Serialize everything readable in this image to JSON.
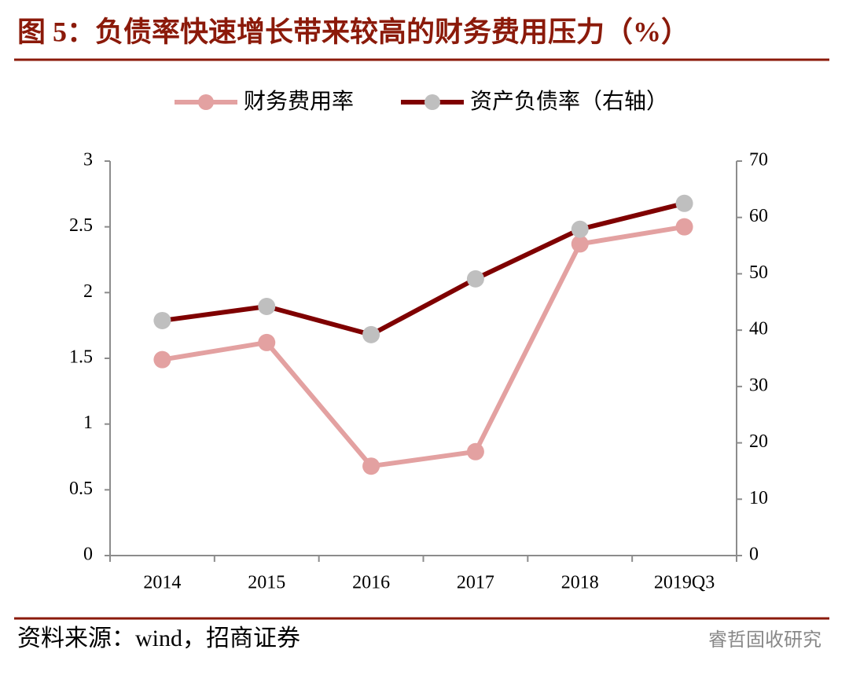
{
  "chart_data": {
    "type": "line",
    "title": "图 5：负债率快速增长带来较高的财务费用压力（%）",
    "categories": [
      "2014",
      "2015",
      "2016",
      "2017",
      "2018",
      "2019Q3"
    ],
    "series": [
      {
        "name": "财务费用率",
        "color": "#e3a1a1",
        "marker_color": "#e3a1a1",
        "values": [
          1.49,
          1.62,
          0.68,
          0.79,
          2.37,
          2.5
        ]
      },
      {
        "name": "资产负债率（右轴）",
        "color": "#7f0000",
        "marker_color": "#bfbfbf",
        "axis": "y2",
        "values": [
          41.7,
          44.2,
          39.2,
          49.1,
          57.9,
          62.5
        ]
      }
    ],
    "ylim": [
      0,
      3
    ],
    "yticks": [
      0,
      0.5,
      1,
      1.5,
      2,
      2.5,
      3
    ],
    "y2lim": [
      0,
      70
    ],
    "y2ticks": [
      0,
      10,
      20,
      30,
      40,
      50,
      60,
      70
    ],
    "legend": "top",
    "source": "资料来源：wind，招商证券",
    "watermark": "睿哲固收研究"
  }
}
